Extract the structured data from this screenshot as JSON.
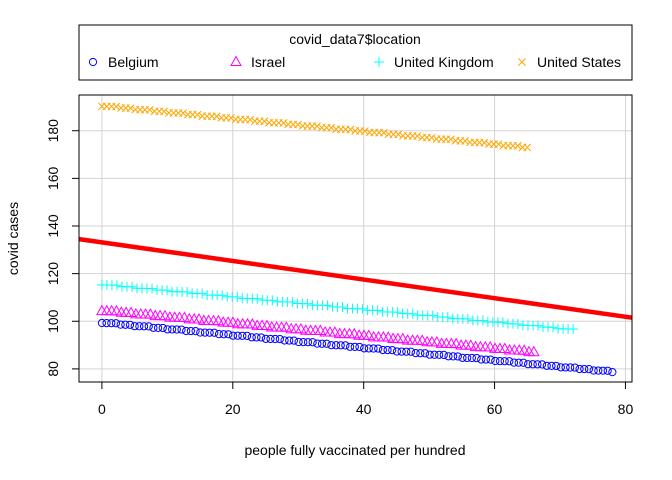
{
  "chart_data": {
    "type": "scatter",
    "xlabel": "people fully vaccinated per hundred",
    "ylabel": "covid cases",
    "xlim": [
      -3.5,
      81
    ],
    "ylim": [
      74.5,
      195
    ],
    "xticks": [
      0,
      20,
      40,
      60,
      80
    ],
    "yticks": [
      80,
      100,
      120,
      140,
      160,
      180
    ],
    "grid": true,
    "legend": {
      "title": "covid_data7$location",
      "position": "top-outside",
      "entries": [
        {
          "name": "Belgium",
          "marker": "circle",
          "color": "#0000ff"
        },
        {
          "name": "Israel",
          "marker": "triangle",
          "color": "#ff00ff"
        },
        {
          "name": "United Kingdom",
          "marker": "plus",
          "color": "#00ffff"
        },
        {
          "name": "United States",
          "marker": "cross",
          "color": "#ffa500"
        }
      ]
    },
    "series": [
      {
        "name": "Belgium",
        "marker": "circle",
        "color": "#0000ff",
        "x_start": 0,
        "x_end": 78,
        "y_start": 99.5,
        "y_end": 78.8,
        "n": 110
      },
      {
        "name": "Israel",
        "marker": "triangle",
        "color": "#ff00ff",
        "x_start": 0,
        "x_end": 66,
        "y_start": 104.5,
        "y_end": 87,
        "n": 90
      },
      {
        "name": "United Kingdom",
        "marker": "plus",
        "color": "#00ffff",
        "x_start": 0,
        "x_end": 72,
        "y_start": 115.5,
        "y_end": 96.5,
        "n": 95
      },
      {
        "name": "United States",
        "marker": "cross",
        "color": "#ffa500",
        "x_start": 0,
        "x_end": 65,
        "y_start": 190.5,
        "y_end": 173,
        "n": 90
      }
    ],
    "fit_line": {
      "color": "#ff0000",
      "x_start": -3.5,
      "x_end": 81,
      "y_start": 134.5,
      "y_end": 101.5
    }
  }
}
